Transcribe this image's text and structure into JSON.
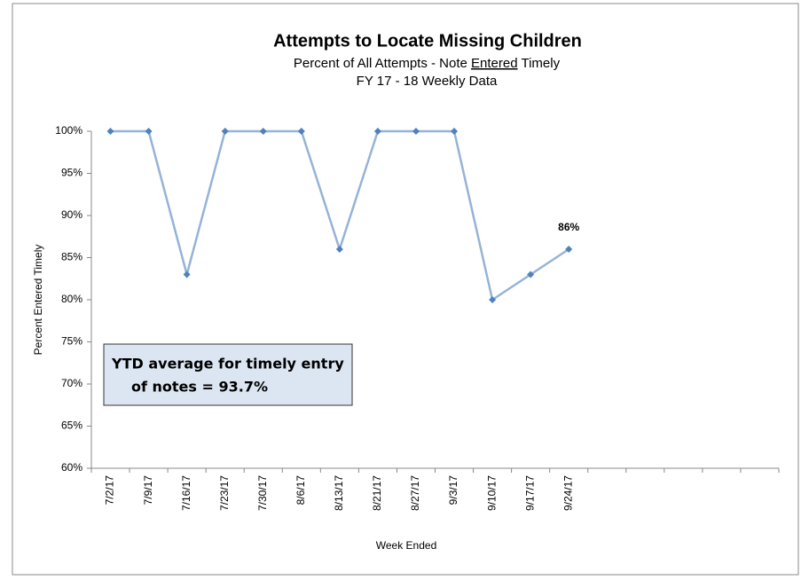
{
  "chart_data": {
    "type": "line",
    "title": "Attempts to Locate Missing Children",
    "subtitle": [
      "Percent of All Attempts -  Note ",
      "Entered",
      " Timely"
    ],
    "subtitle2": "FY 17 - 18  Weekly Data",
    "x_label": "Week Ended",
    "y_label": "Percent Entered Timely",
    "annotation": [
      "YTD average for timely entry",
      "of notes =  93.7%"
    ],
    "categories": [
      "7/2/17",
      "7/9/17",
      "7/16/17",
      "7/23/17",
      "7/30/17",
      "8/6/17",
      "8/13/17",
      "8/21/17",
      "8/27/17",
      "9/3/17",
      "9/10/17",
      "9/17/17",
      "9/24/17",
      null,
      null,
      null,
      null,
      null
    ],
    "series": [
      {
        "name": "Percent Entered Timely",
        "color": "#95b3d7",
        "marker_color": "#4f81bd",
        "values": [
          100,
          100,
          83,
          100,
          100,
          100,
          86,
          100,
          100,
          100,
          80,
          83,
          86,
          null,
          null,
          null,
          null,
          null
        ],
        "value_labels": [
          null,
          null,
          null,
          null,
          null,
          null,
          null,
          null,
          null,
          null,
          null,
          null,
          "86%",
          null,
          null,
          null,
          null,
          null
        ]
      }
    ],
    "ylim": [
      60,
      100
    ],
    "yticks": [
      {
        "value": 60,
        "label": "60%"
      },
      {
        "value": 65,
        "label": "65%"
      },
      {
        "value": 70,
        "label": "70%"
      },
      {
        "value": 75,
        "label": "75%"
      },
      {
        "value": 80,
        "label": "80%"
      },
      {
        "value": 85,
        "label": "85%"
      },
      {
        "value": 90,
        "label": "90%"
      },
      {
        "value": 95,
        "label": "95%"
      },
      {
        "value": 100,
        "label": "100%"
      }
    ],
    "grid": false
  }
}
